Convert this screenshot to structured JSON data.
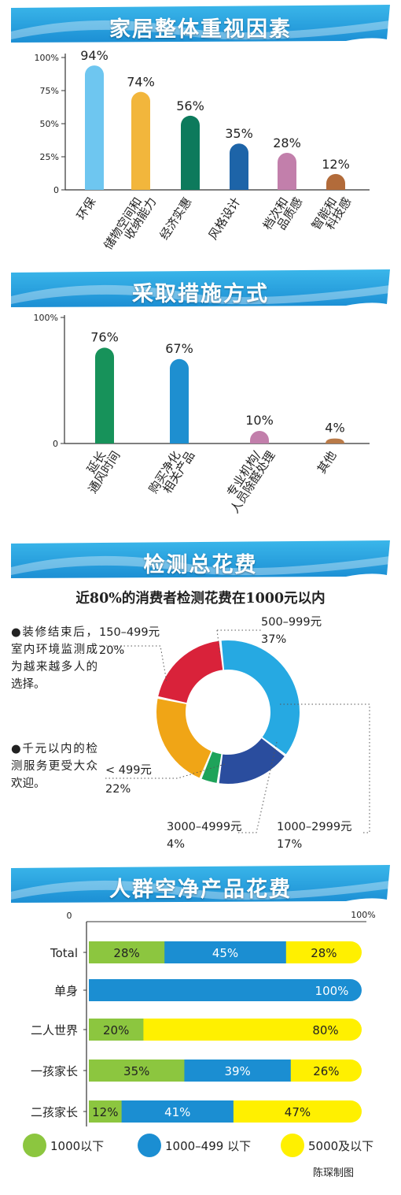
{
  "chart_data": [
    {
      "type": "bar",
      "title": "家居整体重视因素",
      "categories": [
        "环保",
        "储物空间和\n收纳能力",
        "经济实惠",
        "风格设计",
        "档次和\n品质感",
        "智能和\n科技感"
      ],
      "values": [
        94,
        74,
        56,
        35,
        28,
        12
      ],
      "value_labels": [
        "94%",
        "74%",
        "56%",
        "35%",
        "28%",
        "12%"
      ],
      "colors": [
        "#6ec6f0",
        "#f2b63c",
        "#0d7a5c",
        "#1d64a8",
        "#c27fab",
        "#b26b3a"
      ],
      "yticks": [
        "100%",
        "75%",
        "50%",
        "25%",
        "0"
      ],
      "ylim": [
        0,
        100
      ]
    },
    {
      "type": "bar",
      "title": "采取措施方式",
      "categories": [
        "延长\n通风时间",
        "购买净化\n相关产品",
        "专业机构/\n人员除醛处理",
        "其他"
      ],
      "values": [
        76,
        67,
        10,
        4
      ],
      "value_labels": [
        "76%",
        "67%",
        "10%",
        "4%"
      ],
      "colors": [
        "#17925a",
        "#1e8fd0",
        "#c27fab",
        "#b97a48"
      ],
      "yticks": [
        "100%",
        "0"
      ],
      "ylim": [
        0,
        100
      ]
    },
    {
      "type": "pie",
      "title": "检测总花费",
      "subtitle": "近80%的消费者检测花费在1000元以内",
      "slices": [
        {
          "label": "500–999元",
          "value": 37,
          "value_label": "37%",
          "color": "#26a9e2"
        },
        {
          "label": "1000–2999元",
          "value": 17,
          "value_label": "17%",
          "color": "#2a4d9e"
        },
        {
          "label": "3000–4999元",
          "value": 4,
          "value_label": "4%",
          "color": "#1fa35a"
        },
        {
          "label": "< 499元",
          "value": 22,
          "value_label": "22%",
          "color": "#f0a516"
        },
        {
          "label": "150–499元",
          "value": 20,
          "value_label": "20%",
          "color": "#d9223a"
        }
      ]
    },
    {
      "type": "bar",
      "orientation": "horizontal-stacked",
      "title": "人群空净产品花费",
      "xlim": [
        0,
        100
      ],
      "xtick_start": "0",
      "xtick_end": "100%",
      "categories": [
        "Total",
        "单身",
        "二人世界",
        "一孩家长",
        "二孩家长"
      ],
      "series": [
        {
          "name": "1000以下",
          "color": "#8cc63f",
          "values": [
            28,
            0,
            20,
            35,
            12
          ],
          "labels": [
            "28%",
            "",
            "20%",
            "35%",
            "12%"
          ]
        },
        {
          "name": "1000–499 以下",
          "color": "#1b8ed2",
          "values": [
            45,
            100,
            0,
            39,
            41
          ],
          "labels": [
            "45%",
            "100%",
            "",
            "39%",
            "41%"
          ]
        },
        {
          "name": "5000及以下",
          "color": "#fff000",
          "values": [
            28,
            0,
            80,
            26,
            47
          ],
          "labels": [
            "28%",
            "",
            "80%",
            "26%",
            "47%"
          ]
        }
      ]
    }
  ],
  "notes": {
    "line1": "●装修结束后，室内环境监测成为越来越多人的选择。",
    "line2": "●千元以内的检测服务更受大众欢迎。"
  },
  "credit": "陈琛制图"
}
